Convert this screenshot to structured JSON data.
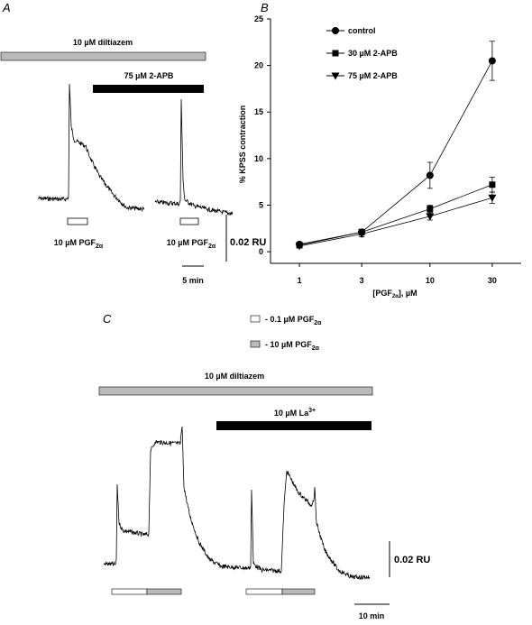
{
  "panel_a": {
    "label": "A",
    "diltiazem": "10 µM diltiazem",
    "apb": "75 µM 2-APB",
    "stim1": "10 µM PGF",
    "stim1_sub": "2α",
    "stim2": "10 µM PGF",
    "stim2_sub": "2α",
    "scale_y": "0.02 RU",
    "scale_x": "5 min"
  },
  "chart_data": {
    "type": "line",
    "panel_label": "B",
    "x_label": "[PGF",
    "x_label_sub": "2α",
    "x_label_end": "], µM",
    "y_label": "% KPSS contraction",
    "x": [
      1,
      3,
      10,
      30
    ],
    "xlim": [
      0.6,
      50
    ],
    "log_x": true,
    "xticks": [
      1,
      3,
      10,
      30
    ],
    "ylim": [
      -1.25,
      25
    ],
    "yticks": [
      0,
      5,
      10,
      15,
      20,
      25
    ],
    "legend": "upper left",
    "series": [
      {
        "name": "control",
        "color": "#000000",
        "marker": "circle",
        "values": [
          0.8,
          2.1,
          8.2,
          20.5
        ],
        "errors": [
          0.2,
          0.3,
          1.4,
          2.1
        ]
      },
      {
        "name": "30 µM 2-APB",
        "color": "#000000",
        "marker": "square",
        "values": [
          0.7,
          2.1,
          4.6,
          7.2
        ],
        "errors": [
          0.2,
          0.3,
          0.4,
          0.8
        ]
      },
      {
        "name": "75 µM 2-APB",
        "color": "#000000",
        "marker": "triangle-down",
        "values": [
          0.6,
          1.9,
          3.8,
          5.8
        ],
        "errors": [
          0.2,
          0.3,
          0.4,
          0.6
        ]
      }
    ]
  },
  "panel_c": {
    "label": "C",
    "legend_low": "- 0.1 µM PGF",
    "legend_low_sub": "2α",
    "legend_high": "- 10 µM PGF",
    "legend_high_sub": "2α",
    "diltiazem": "10 µM diltiazem",
    "la": "10 µM La",
    "la_sup": "3+",
    "scale_y": "0.02 RU",
    "scale_x": "10 min"
  }
}
